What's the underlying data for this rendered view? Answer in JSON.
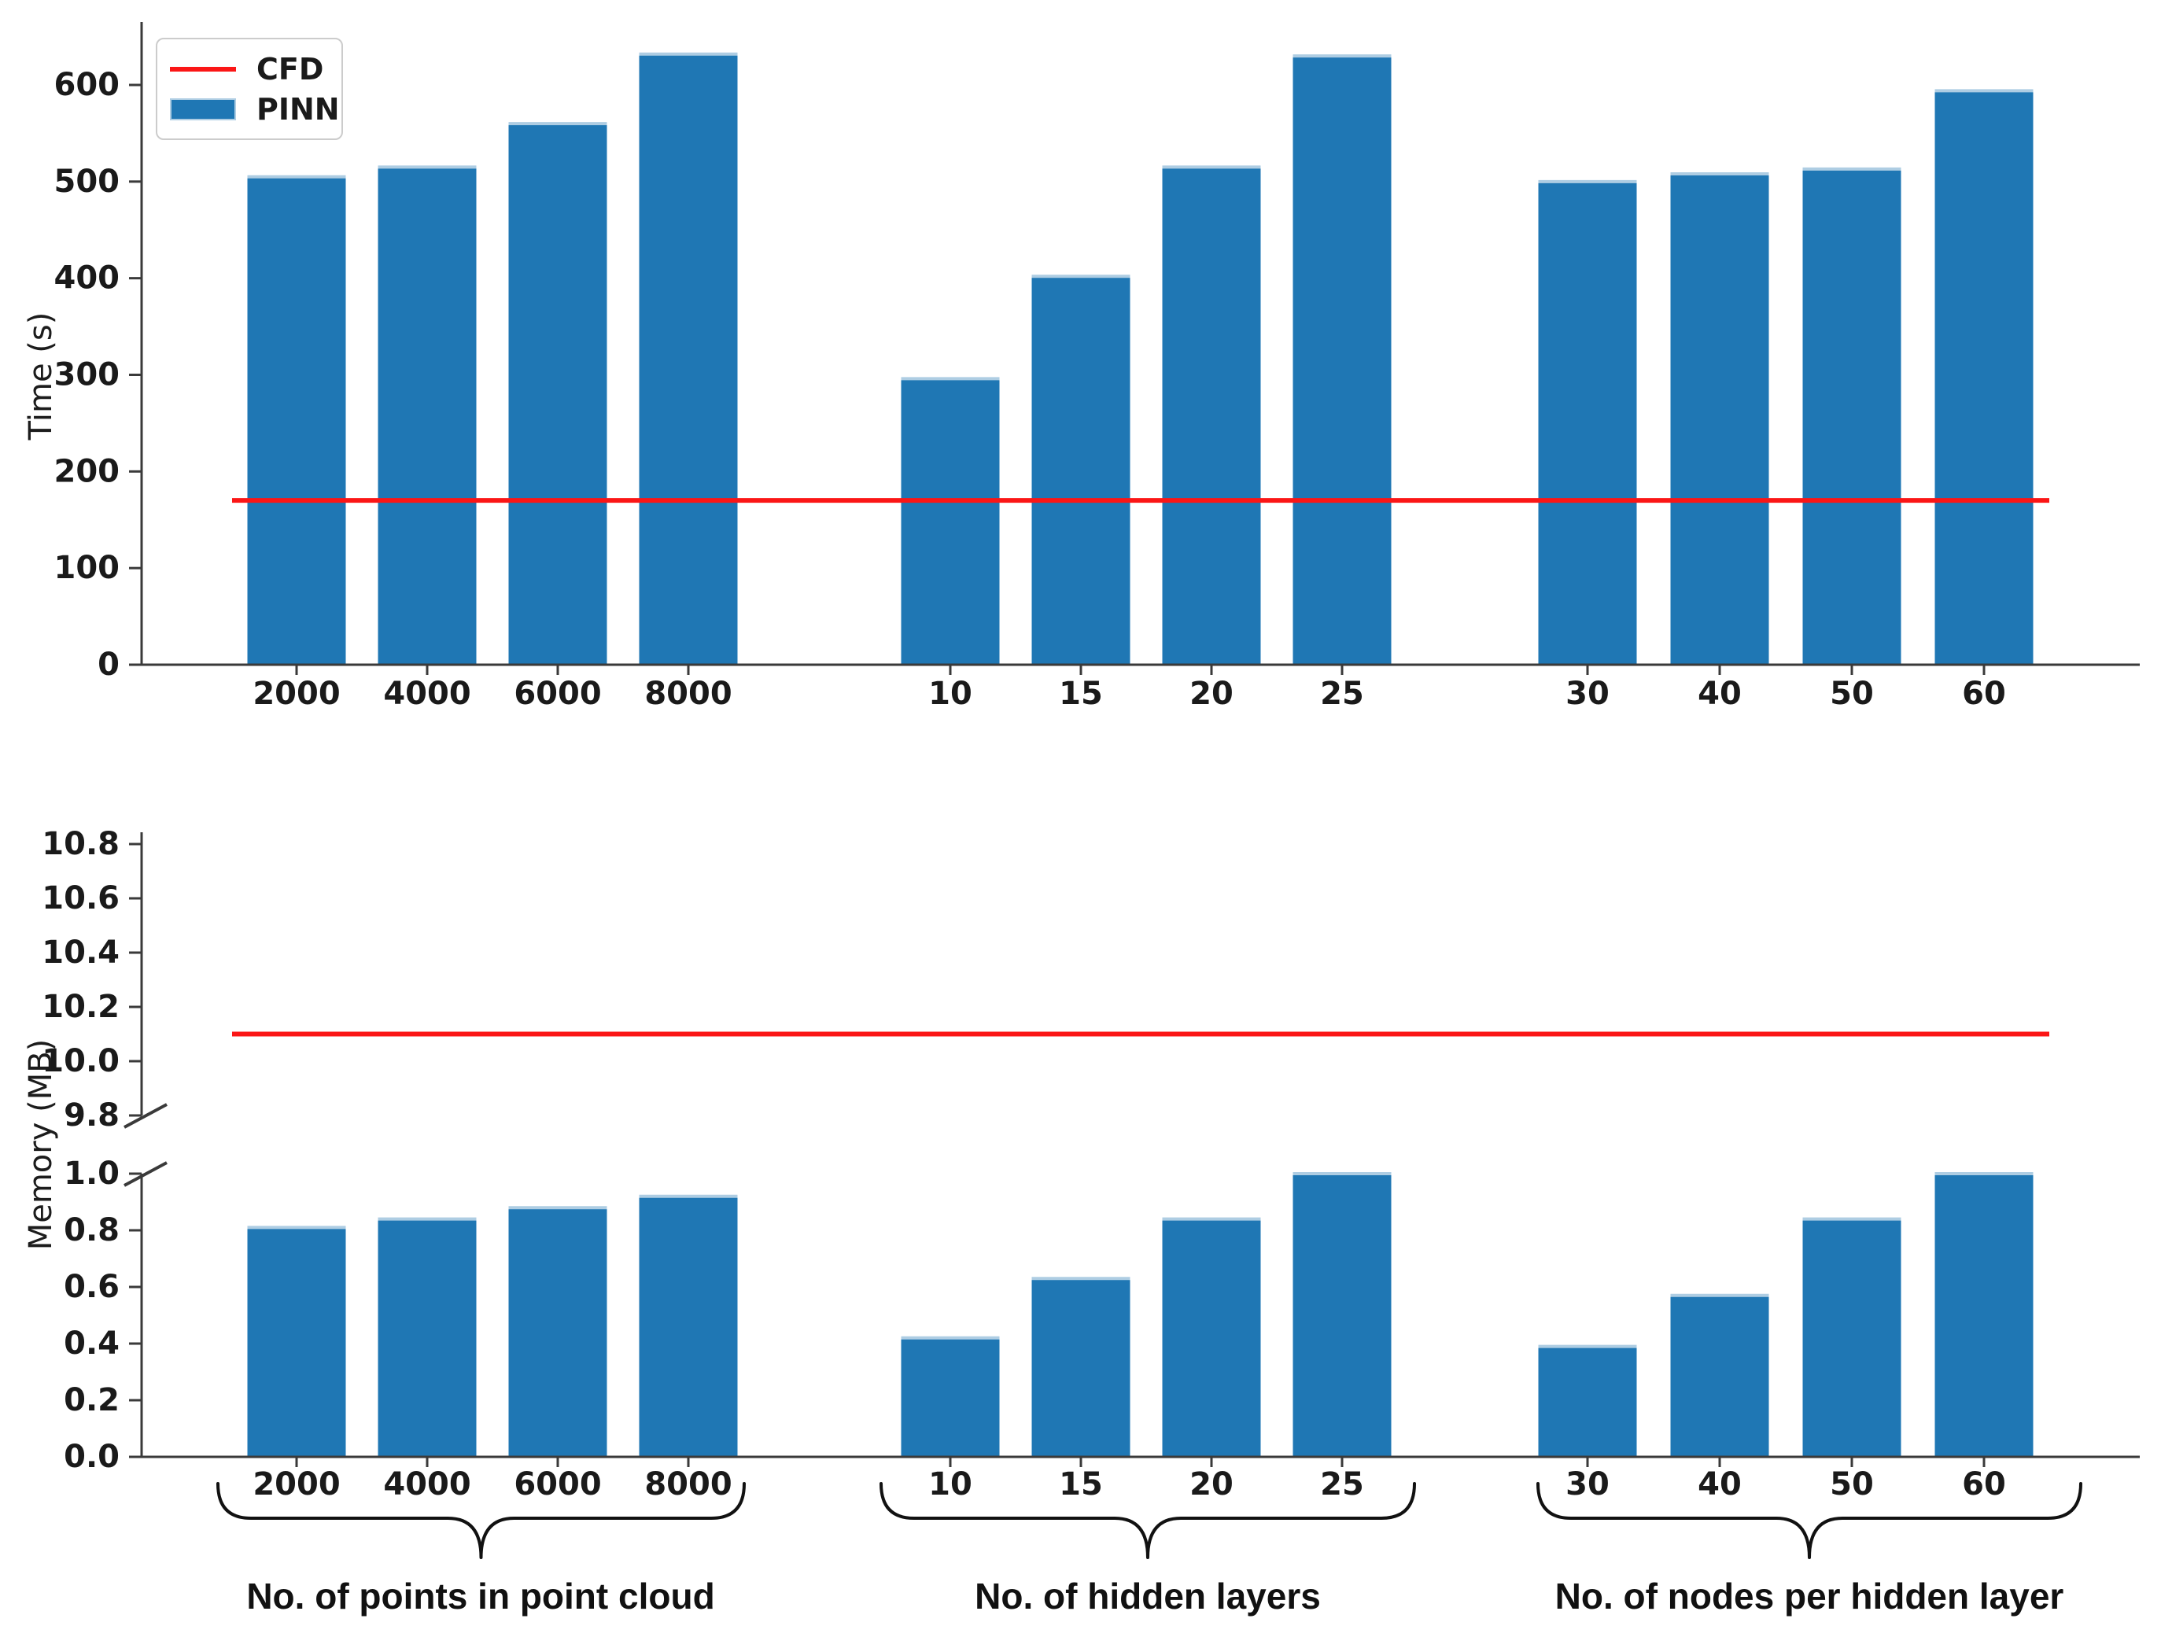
{
  "figure": {
    "colors": {
      "bar": "#1f77b4",
      "bar_edge": "#aecde3",
      "cfd_line": "#fb1616",
      "axis": "#3a3a3a",
      "text": "#1a1a1a",
      "legend_border": "#cccccc"
    },
    "legend": {
      "position": "upper left",
      "items": [
        {
          "label": "CFD",
          "swatch": "line",
          "color": "#fb1616"
        },
        {
          "label": "PINN",
          "swatch": "rect",
          "color": "#1f77b4"
        }
      ]
    }
  },
  "chart_data": [
    {
      "type": "bar",
      "title": "",
      "xlabel": "",
      "ylabel": "Time (s)",
      "ylim": [
        0,
        665
      ],
      "yticks": [
        "0",
        "100",
        "200",
        "300",
        "400",
        "500",
        "600"
      ],
      "grid": false,
      "series_name": "PINN",
      "groups": [
        {
          "categories": [
            "2000",
            "4000",
            "6000",
            "8000"
          ],
          "values": [
            505,
            515,
            560,
            632
          ]
        },
        {
          "categories": [
            "10",
            "15",
            "20",
            "25"
          ],
          "values": [
            296,
            402,
            515,
            630
          ]
        },
        {
          "categories": [
            "30",
            "40",
            "50",
            "60"
          ],
          "values": [
            500,
            508,
            513,
            594
          ]
        }
      ],
      "cfd_line_value": 170
    },
    {
      "type": "bar",
      "title": "",
      "xlabel": "",
      "ylabel": "Memory (MB)",
      "broken_axis": true,
      "upper_segment": {
        "ylim": [
          9.8,
          10.8
        ],
        "yticks": [
          "9.8",
          "10.0",
          "10.2",
          "10.4",
          "10.6",
          "10.8"
        ],
        "cfd_line_value": 10.1
      },
      "lower_segment": {
        "ylim": [
          0.0,
          1.0
        ],
        "yticks": [
          "0.0",
          "0.2",
          "0.4",
          "0.6",
          "0.8",
          "1.0"
        ]
      },
      "series_name": "PINN",
      "groups": [
        {
          "categories": [
            "2000",
            "4000",
            "6000",
            "8000"
          ],
          "values": [
            0.81,
            0.84,
            0.88,
            0.92
          ]
        },
        {
          "categories": [
            "10",
            "15",
            "20",
            "25"
          ],
          "values": [
            0.42,
            0.63,
            0.84,
            1.0
          ]
        },
        {
          "categories": [
            "30",
            "40",
            "50",
            "60"
          ],
          "values": [
            0.39,
            0.57,
            0.84,
            1.0
          ]
        }
      ],
      "group_labels": [
        "No. of points in point cloud",
        "No. of hidden layers",
        "No. of nodes per hidden layer"
      ]
    }
  ]
}
